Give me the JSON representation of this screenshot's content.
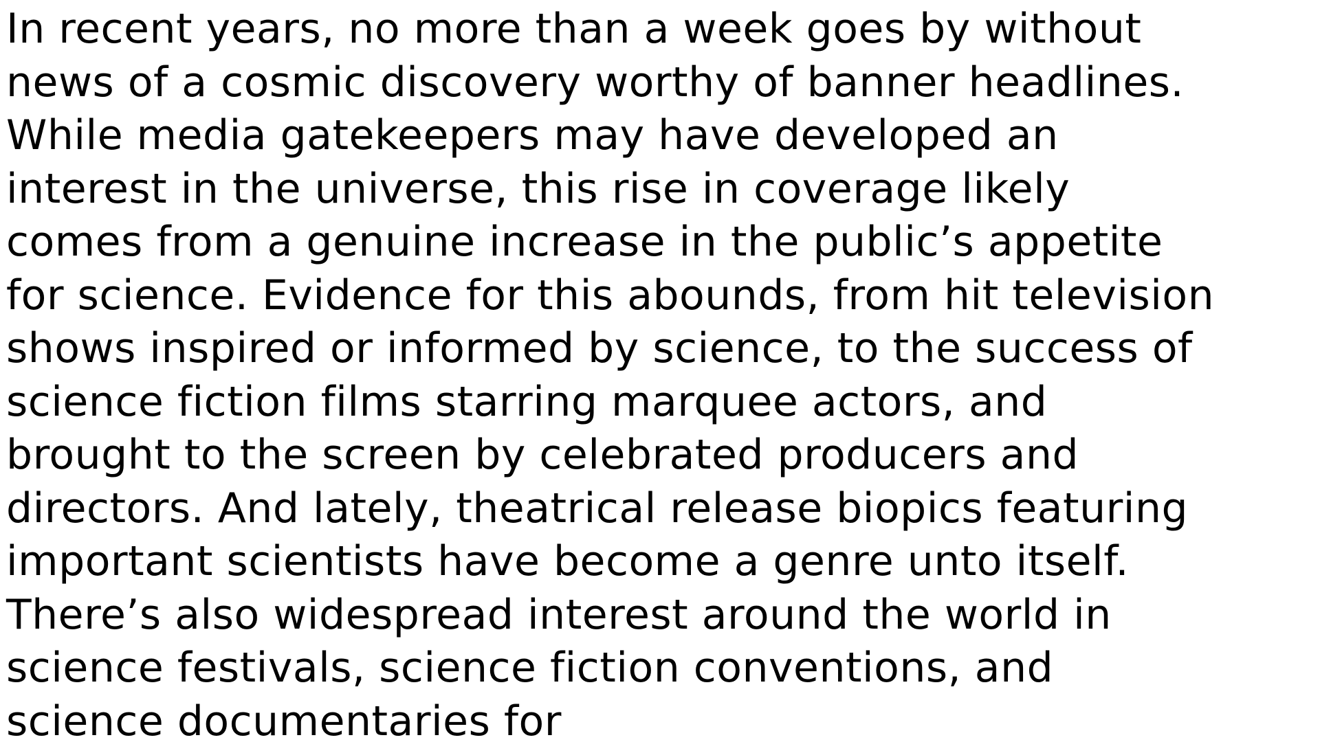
{
  "document": {
    "lines": [
      "In recent years, no more than a week goes by without",
      "news of a cosmic discovery worthy of banner headlines.",
      "While media gatekeepers may have developed an",
      "interest in the universe, this rise in coverage likely",
      "comes from a genuine increase in the public’s appetite",
      "for science. Evidence for this abounds, from hit television",
      "shows inspired or informed by science, to the success of",
      "science fiction films starring marquee actors, and",
      "brought to the screen by celebrated producers and",
      "directors. And lately, theatrical release biopics featuring",
      "important scientists have become a genre unto itself.",
      "There’s also widespread interest around the world in",
      "science festivals, science fiction conventions, and",
      "science documentaries for"
    ]
  }
}
